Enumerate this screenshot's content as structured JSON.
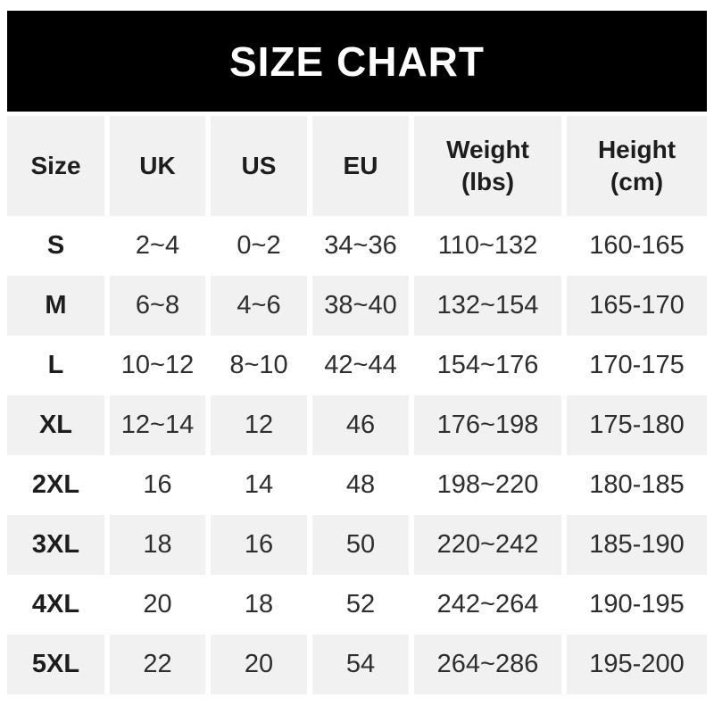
{
  "banner": {
    "title": "SIZE CHART",
    "bg_color": "#000000",
    "text_color": "#ffffff"
  },
  "chart_data": {
    "type": "table",
    "title": "SIZE CHART",
    "columns": [
      "Size",
      "UK",
      "US",
      "EU",
      "Weight (lbs)",
      "Height (cm)"
    ],
    "rows": [
      [
        "S",
        "2~4",
        "0~2",
        "34~36",
        "110~132",
        "160-165"
      ],
      [
        "M",
        "6~8",
        "4~6",
        "38~40",
        "132~154",
        "165-170"
      ],
      [
        "L",
        "10~12",
        "8~10",
        "42~44",
        "154~176",
        "170-175"
      ],
      [
        "XL",
        "12~14",
        "12",
        "46",
        "176~198",
        "175-180"
      ],
      [
        "2XL",
        "16",
        "14",
        "48",
        "198~220",
        "180-185"
      ],
      [
        "3XL",
        "18",
        "16",
        "50",
        "220~242",
        "185-190"
      ],
      [
        "4XL",
        "20",
        "18",
        "52",
        "242~264",
        "190-195"
      ],
      [
        "5XL",
        "22",
        "20",
        "54",
        "264~286",
        "195-200"
      ]
    ],
    "layout": {
      "stripe_color": "#f1f1f1",
      "striped_rows": [
        "header",
        "M",
        "XL",
        "3XL",
        "5XL"
      ],
      "gutter_color": "#ffffff"
    }
  },
  "table": {
    "columns": [
      "Size",
      "UK",
      "US",
      "EU",
      "Weight\n(lbs)",
      "Height\n(cm)"
    ],
    "rows": [
      [
        "S",
        "2~4",
        "0~2",
        "34~36",
        "110~132",
        "160-165"
      ],
      [
        "M",
        "6~8",
        "4~6",
        "38~40",
        "132~154",
        "165-170"
      ],
      [
        "L",
        "10~12",
        "8~10",
        "42~44",
        "154~176",
        "170-175"
      ],
      [
        "XL",
        "12~14",
        "12",
        "46",
        "176~198",
        "175-180"
      ],
      [
        "2XL",
        "16",
        "14",
        "48",
        "198~220",
        "180-185"
      ],
      [
        "3XL",
        "18",
        "16",
        "50",
        "220~242",
        "185-190"
      ],
      [
        "4XL",
        "20",
        "18",
        "52",
        "242~264",
        "190-195"
      ],
      [
        "5XL",
        "22",
        "20",
        "54",
        "264~286",
        "195-200"
      ]
    ]
  }
}
